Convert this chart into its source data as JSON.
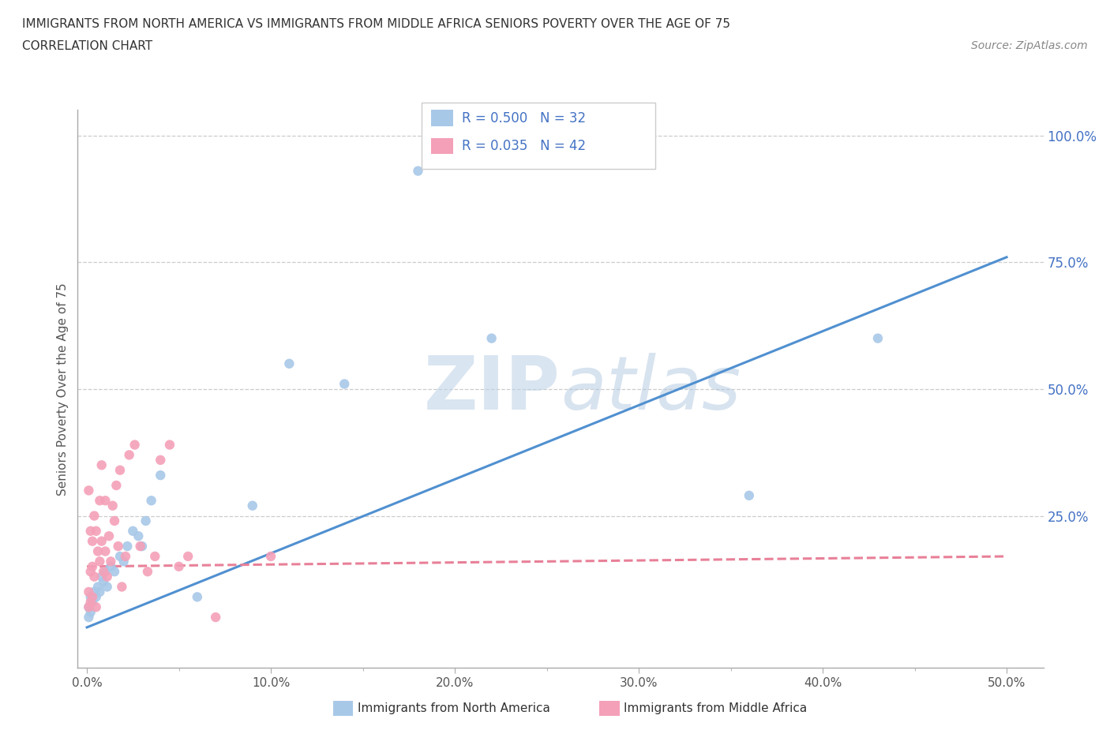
{
  "title_line1": "IMMIGRANTS FROM NORTH AMERICA VS IMMIGRANTS FROM MIDDLE AFRICA SENIORS POVERTY OVER THE AGE OF 75",
  "title_line2": "CORRELATION CHART",
  "source_text": "Source: ZipAtlas.com",
  "ylabel": "Seniors Poverty Over the Age of 75",
  "xticklabels": [
    "0.0%",
    "",
    "",
    "",
    "",
    "",
    "",
    "",
    "",
    "",
    "10.0%",
    "",
    "",
    "",
    "",
    "",
    "",
    "",
    "",
    "",
    "20.0%",
    "",
    "",
    "",
    "",
    "",
    "",
    "",
    "",
    "",
    "30.0%",
    "",
    "",
    "",
    "",
    "",
    "",
    "",
    "",
    "",
    "40.0%",
    "",
    "",
    "",
    "",
    "",
    "",
    "",
    "",
    "",
    "50.0%"
  ],
  "xlim": [
    -0.005,
    0.52
  ],
  "ylim": [
    -0.05,
    1.05
  ],
  "legend_R1": "R = 0.500",
  "legend_N1": "N = 32",
  "legend_R2": "R = 0.035",
  "legend_N2": "N = 42",
  "color_blue": "#a8c8e8",
  "color_pink": "#f4a0b8",
  "color_blue_text": "#4472C4",
  "line_blue": "#5090d0",
  "line_pink": "#e88098",
  "watermark_zip": "ZIP",
  "watermark_atlas": "atlas",
  "blue_scatter_x": [
    0.001,
    0.001,
    0.002,
    0.002,
    0.003,
    0.004,
    0.005,
    0.006,
    0.007,
    0.008,
    0.009,
    0.01,
    0.011,
    0.013,
    0.015,
    0.018,
    0.02,
    0.022,
    0.025,
    0.028,
    0.03,
    0.032,
    0.035,
    0.04,
    0.06,
    0.09,
    0.11,
    0.14,
    0.18,
    0.22,
    0.36,
    0.43
  ],
  "blue_scatter_y": [
    0.05,
    0.07,
    0.06,
    0.09,
    0.08,
    0.1,
    0.09,
    0.11,
    0.1,
    0.13,
    0.12,
    0.14,
    0.11,
    0.15,
    0.14,
    0.17,
    0.16,
    0.19,
    0.22,
    0.21,
    0.19,
    0.24,
    0.28,
    0.33,
    0.09,
    0.27,
    0.55,
    0.51,
    0.93,
    0.6,
    0.29,
    0.6
  ],
  "pink_scatter_x": [
    0.001,
    0.001,
    0.001,
    0.002,
    0.002,
    0.002,
    0.003,
    0.003,
    0.003,
    0.004,
    0.004,
    0.005,
    0.005,
    0.006,
    0.007,
    0.007,
    0.008,
    0.008,
    0.009,
    0.01,
    0.01,
    0.011,
    0.012,
    0.013,
    0.014,
    0.015,
    0.016,
    0.017,
    0.018,
    0.019,
    0.021,
    0.023,
    0.026,
    0.029,
    0.033,
    0.037,
    0.04,
    0.045,
    0.05,
    0.055,
    0.07,
    0.1
  ],
  "pink_scatter_y": [
    0.07,
    0.1,
    0.3,
    0.08,
    0.14,
    0.22,
    0.09,
    0.15,
    0.2,
    0.13,
    0.25,
    0.07,
    0.22,
    0.18,
    0.16,
    0.28,
    0.2,
    0.35,
    0.14,
    0.18,
    0.28,
    0.13,
    0.21,
    0.16,
    0.27,
    0.24,
    0.31,
    0.19,
    0.34,
    0.11,
    0.17,
    0.37,
    0.39,
    0.19,
    0.14,
    0.17,
    0.36,
    0.39,
    0.15,
    0.17,
    0.05,
    0.17
  ],
  "blue_line_x": [
    0.0,
    0.5
  ],
  "blue_line_y": [
    0.03,
    0.76
  ],
  "pink_line_x": [
    0.0,
    0.5
  ],
  "pink_line_y": [
    0.15,
    0.17
  ],
  "grid_color": "#cccccc",
  "bg_color": "#ffffff",
  "xtick_major": [
    0.0,
    0.1,
    0.2,
    0.3,
    0.4,
    0.5
  ],
  "xtick_minor": [
    0.05,
    0.15,
    0.25,
    0.35,
    0.45
  ],
  "ytick_positions": [
    0.0,
    0.25,
    0.5,
    0.75,
    1.0
  ],
  "ytick_labels": [
    "",
    "25.0%",
    "50.0%",
    "75.0%",
    "100.0%"
  ]
}
